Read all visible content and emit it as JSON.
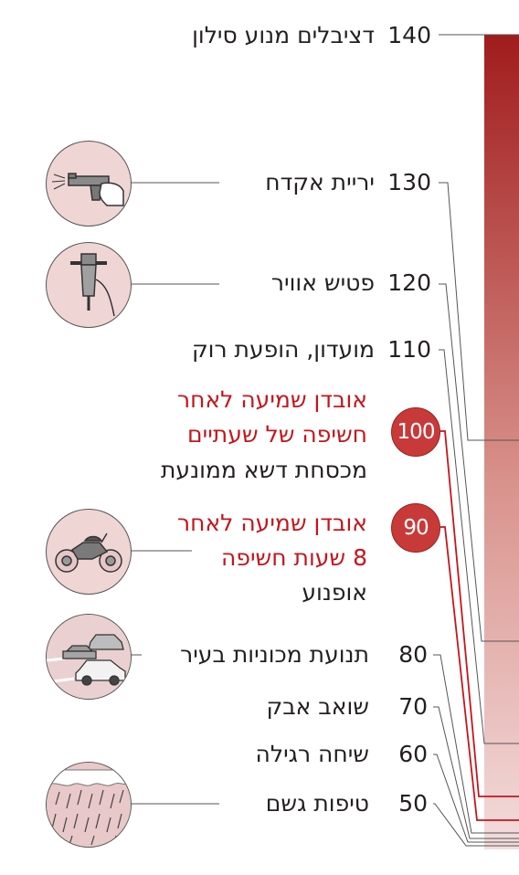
{
  "title_line": {
    "value": "140",
    "label": "דציבלים מנוע סילון"
  },
  "levels": [
    {
      "value": "130",
      "label": "יריית אקדח",
      "icon": "gun-icon"
    },
    {
      "value": "120",
      "label": "פטיש אוויר",
      "icon": "jackhammer-icon"
    },
    {
      "value": "110",
      "label": "מועדון, הופעת רוק"
    },
    {
      "value": "80",
      "label": "תנועת מכוניות בעיר",
      "icon": "car-traffic-icon"
    },
    {
      "value": "70",
      "label": "שואב אבק"
    },
    {
      "value": "60",
      "label": "שיחה רגילה"
    },
    {
      "value": "50",
      "label": "טיפות גשם",
      "icon": "rain-icon"
    }
  ],
  "hearing_loss": [
    {
      "value": "100",
      "warning_line1": "אובדן שמיעה לאחר",
      "warning_line2": "חשיפה של שעתיים",
      "label": "מכסחת דשא ממונעת"
    },
    {
      "value": "90",
      "warning_line1": "אובדן שמיעה לאחר",
      "warning_line2": "8 שעות חשיפה",
      "label": "אופנוע",
      "icon": "motorcycle-icon"
    }
  ],
  "colors": {
    "bar_top": "#a01c1c",
    "bar_bottom": "#f2d8d8",
    "warning": "#c4161c",
    "badge": "#c83a3a",
    "icon_bg": "#f0d5d5"
  }
}
